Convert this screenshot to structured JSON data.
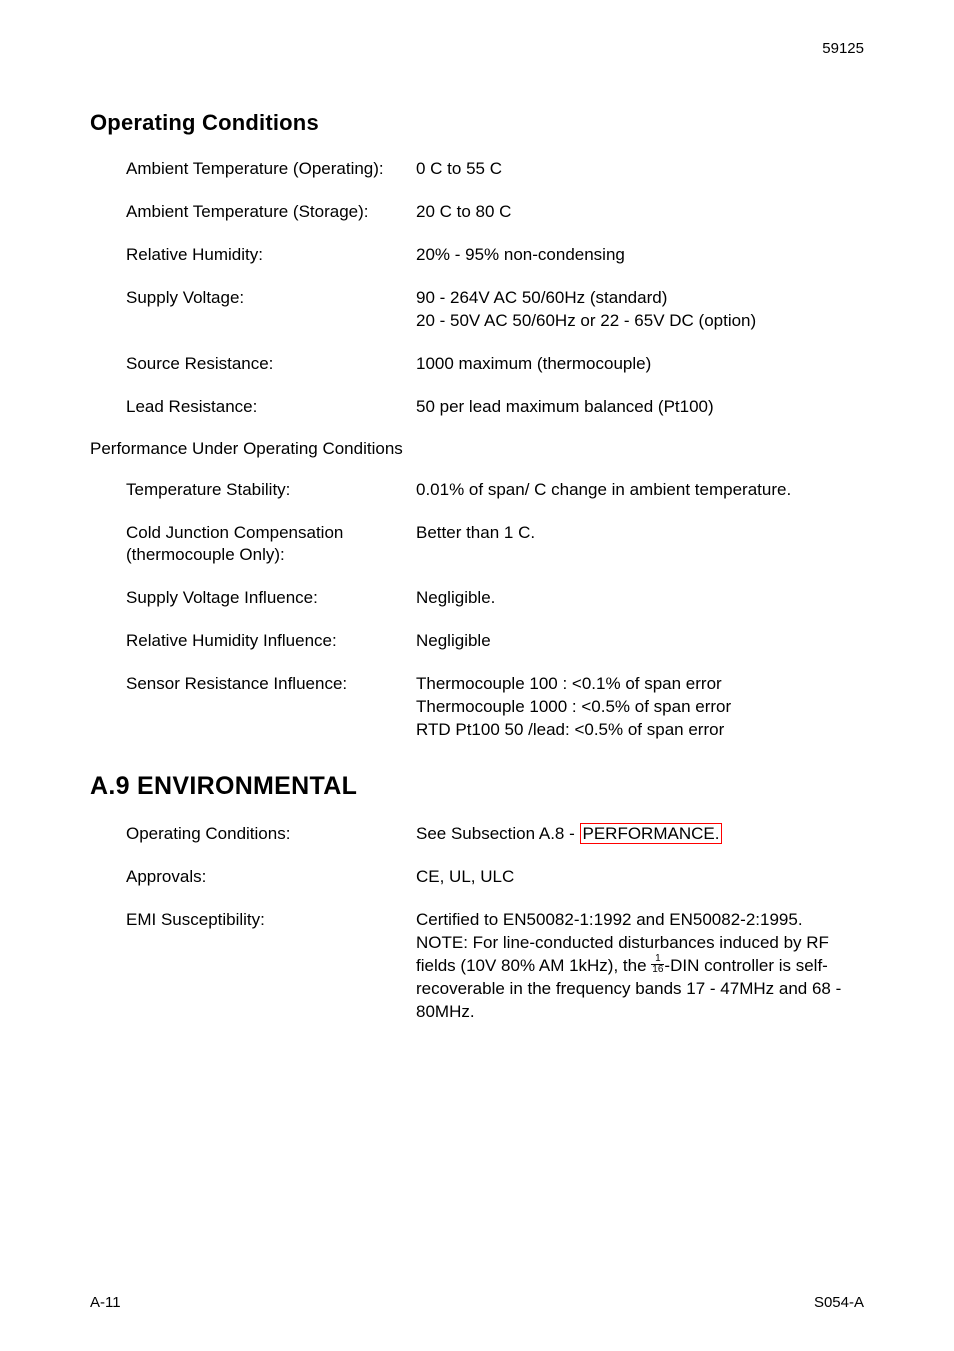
{
  "header": {
    "page_number_top": "59125"
  },
  "sections": {
    "operating_conditions": {
      "heading": "Operating Conditions",
      "rows": [
        {
          "label": "Ambient Temperature (Operating):",
          "value": "0 C to 55 C"
        },
        {
          "label": "Ambient Temperature (Storage):",
          "value": " 20 C to 80 C"
        },
        {
          "label": "Relative Humidity:",
          "value": "20% - 95% non-condensing"
        },
        {
          "label": "Supply Voltage:",
          "value": "90 - 264V AC 50/60Hz (standard)\n20 - 50V AC 50/60Hz or 22 - 65V DC (option)"
        },
        {
          "label": "Source Resistance:",
          "value": "1000  maximum (thermocouple)"
        },
        {
          "label": "Lead Resistance:",
          "value": "50  per lead maximum balanced (Pt100)"
        }
      ]
    },
    "performance": {
      "heading": "Performance Under Operating Conditions",
      "rows": [
        {
          "label": "Temperature Stability:",
          "value": "0.01% of span/ C change in ambient temperature."
        },
        {
          "label": "Cold Junction Compensation (thermocouple Only):",
          "value": "Better than  1 C."
        },
        {
          "label": "Supply Voltage Influence:",
          "value": "Negligible."
        },
        {
          "label": "Relative Humidity Influence:",
          "value": "Negligible"
        },
        {
          "label": "Sensor Resistance Influence:",
          "value": "Thermocouple 100  : <0.1% of span error\nThermocouple 1000  : <0.5% of span error\nRTD Pt100 50 /lead: <0.5% of span error"
        }
      ]
    },
    "environmental": {
      "heading": "A.9   ENVIRONMENTAL",
      "rows": [
        {
          "label": "Operating Conditions:",
          "value_prefix": "See Subsection A.8 - ",
          "link_text": "PERFORMANCE."
        },
        {
          "label": "Approvals:",
          "value": "CE, UL, ULC"
        },
        {
          "label": "EMI Susceptibility:",
          "value_line1": "Certified to EN50082-1:1992 and EN50082-2:1995.",
          "value_line2": "NOTE: For line-conducted disturbances induced by RF fields (10V 80% AM 1kHz), the ",
          "fraction_num": "1",
          "fraction_den": "16",
          "value_line3": "-DIN controller is self-recoverable in the frequency bands 17 - 47MHz and 68 - 80MHz."
        }
      ]
    }
  },
  "footer": {
    "left": "A-11",
    "right": "S054-A"
  }
}
